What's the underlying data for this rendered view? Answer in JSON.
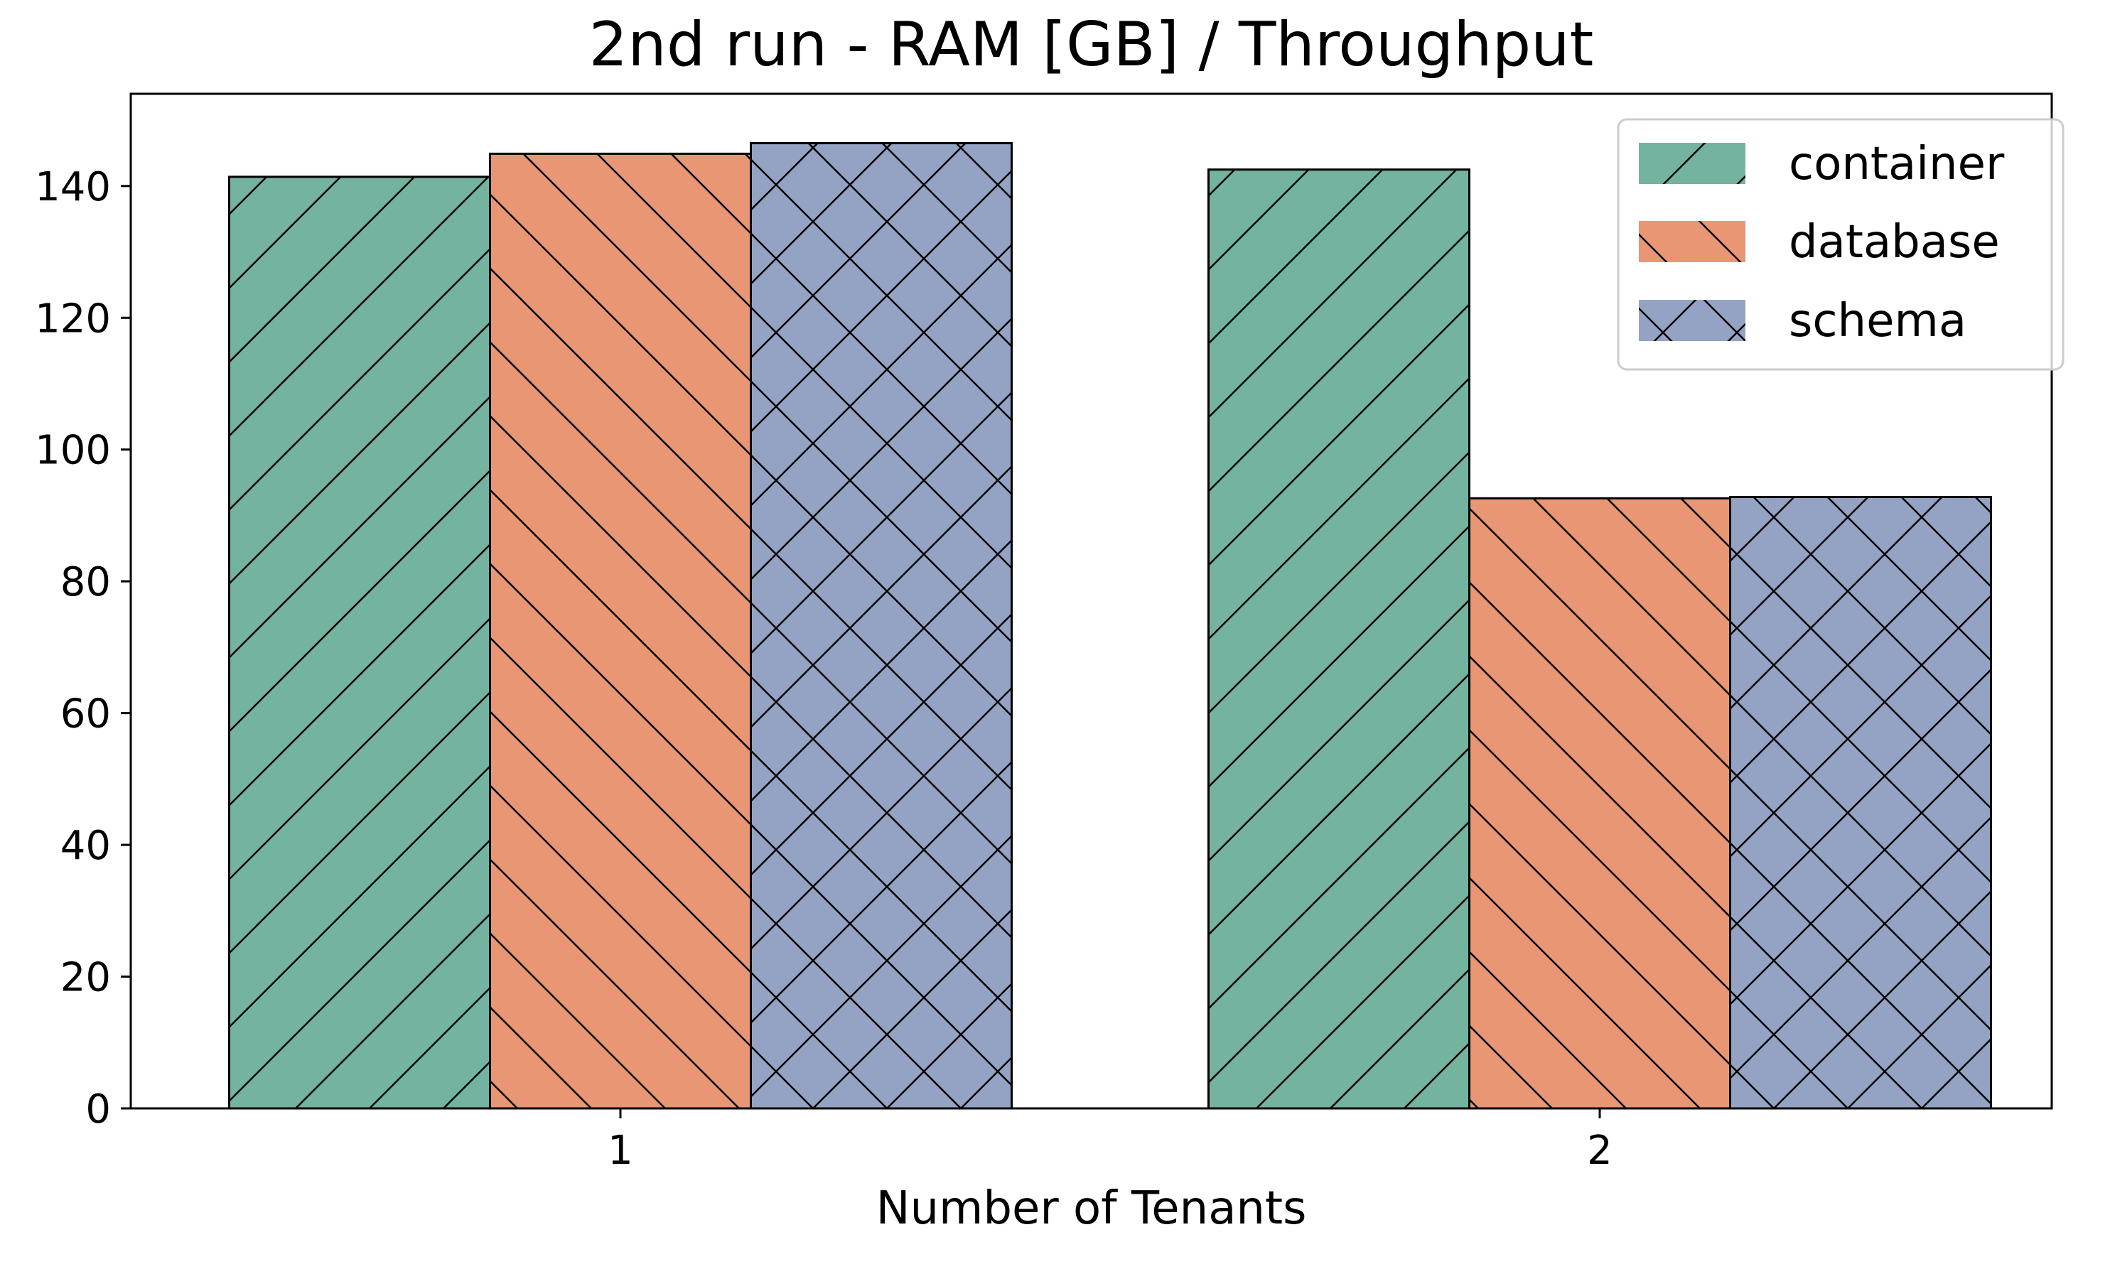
{
  "chart_data": {
    "type": "bar",
    "title": "2nd run - RAM [GB] / Throughput",
    "xlabel": "Number of Tenants",
    "ylabel": "",
    "categories": [
      "1",
      "2"
    ],
    "series": [
      {
        "name": "container",
        "values": [
          141.4,
          142.5
        ],
        "color": "#73b3a0",
        "hatch": "forward-diagonal"
      },
      {
        "name": "database",
        "values": [
          144.9,
          92.6
        ],
        "color": "#e89673",
        "hatch": "back-diagonal"
      },
      {
        "name": "schema",
        "values": [
          146.5,
          92.8
        ],
        "color": "#94a3c3",
        "hatch": "cross"
      }
    ],
    "ylim": [
      0,
      154
    ],
    "yticks": [
      0,
      20,
      40,
      60,
      80,
      100,
      120,
      140
    ],
    "grid": false,
    "legend_position": "top-right"
  }
}
